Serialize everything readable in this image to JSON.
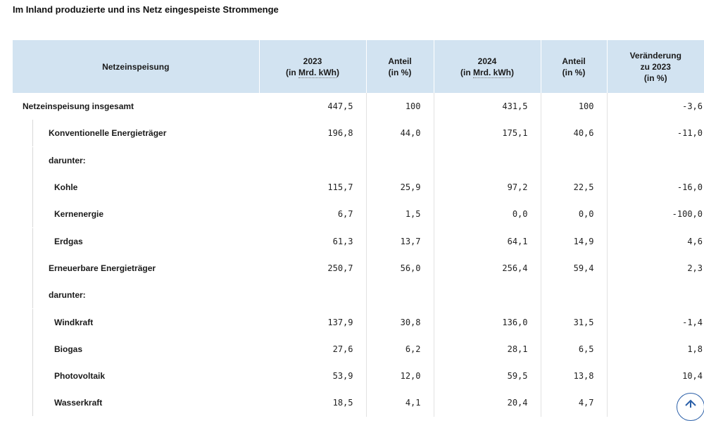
{
  "caption": "Im Inland produzierte und ins Netz eingespeiste Strommenge",
  "headers": {
    "h1": "Netzeinspeisung",
    "h2a": "2023",
    "h2b_pre": "(in ",
    "h2b_abbr": "Mrd. kWh",
    "h2b_post": ")",
    "h3a": "Anteil",
    "h3b": "(in %)",
    "h4a": "2024",
    "h4b_pre": "(in ",
    "h4b_abbr": "Mrd. kWh",
    "h4b_post": ")",
    "h5a": "Anteil",
    "h5b": "(in %)",
    "h6a": "Veränderung",
    "h6b": "zu 2023",
    "h6c": "(in %)"
  },
  "rows": [
    {
      "label": "Netzeinspeisung insgesamt",
      "v2023": "447,5",
      "a2023": "100",
      "v2024": "431,5",
      "a2024": "100",
      "chg": "-3,6"
    },
    {
      "label": "Konventionelle Energieträger",
      "v2023": "196,8",
      "a2023": "44,0",
      "v2024": "175,1",
      "a2024": "40,6",
      "chg": "-11,0"
    },
    {
      "label": "darunter:",
      "v2023": "",
      "a2023": "",
      "v2024": "",
      "a2024": "",
      "chg": ""
    },
    {
      "label": "Kohle",
      "v2023": "115,7",
      "a2023": "25,9",
      "v2024": "97,2",
      "a2024": "22,5",
      "chg": "-16,0"
    },
    {
      "label": "Kernenergie",
      "v2023": "6,7",
      "a2023": "1,5",
      "v2024": "0,0",
      "a2024": "0,0",
      "chg": "-100,0"
    },
    {
      "label": "Erdgas",
      "v2023": "61,3",
      "a2023": "13,7",
      "v2024": "64,1",
      "a2024": "14,9",
      "chg": "4,6"
    },
    {
      "label": "Erneuerbare Energieträger",
      "v2023": "250,7",
      "a2023": "56,0",
      "v2024": "256,4",
      "a2024": "59,4",
      "chg": "2,3"
    },
    {
      "label": "darunter:",
      "v2023": "",
      "a2023": "",
      "v2024": "",
      "a2024": "",
      "chg": ""
    },
    {
      "label": "Windkraft",
      "v2023": "137,9",
      "a2023": "30,8",
      "v2024": "136,0",
      "a2024": "31,5",
      "chg": "-1,4"
    },
    {
      "label": "Biogas",
      "v2023": "27,6",
      "a2023": "6,2",
      "v2024": "28,1",
      "a2024": "6,5",
      "chg": "1,8"
    },
    {
      "label": "Photovoltaik",
      "v2023": "53,9",
      "a2023": "12,0",
      "v2024": "59,5",
      "a2024": "13,8",
      "chg": "10,4"
    },
    {
      "label": "Wasserkraft",
      "v2023": "18,5",
      "a2023": "4,1",
      "v2024": "20,4",
      "a2024": "4,7",
      "chg": ""
    }
  ],
  "icons": {
    "scroll_top": "arrow-up-icon"
  },
  "colors": {
    "header_bg": "#d2e3f1",
    "scroll_button": "#2a5fa8"
  }
}
